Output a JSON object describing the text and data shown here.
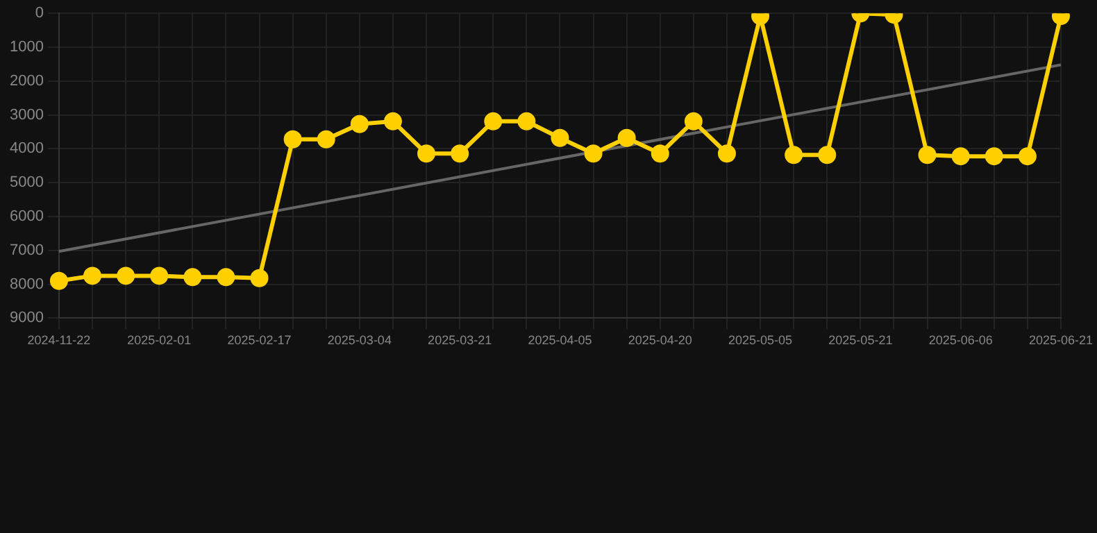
{
  "chart_data": {
    "type": "line",
    "categories": [
      "2024-11-22",
      null,
      null,
      "2025-02-01",
      null,
      null,
      "2025-02-17",
      null,
      null,
      "2025-03-04",
      null,
      null,
      "2025-03-21",
      null,
      null,
      "2025-04-05",
      null,
      null,
      "2025-04-20",
      null,
      null,
      "2025-05-05",
      null,
      null,
      "2025-05-21",
      null,
      null,
      "2025-06-06",
      null,
      null,
      "2025-06-21"
    ],
    "series": [
      {
        "color": "#ffd000",
        "marker": "circle",
        "values": [
          7900,
          7750,
          7750,
          7750,
          7790,
          7790,
          7820,
          3720,
          3720,
          3270,
          3190,
          4140,
          4140,
          3190,
          3190,
          3680,
          4140,
          3680,
          4140,
          3190,
          4140,
          80,
          4180,
          4180,
          0,
          40,
          4180,
          4220,
          4220,
          4220,
          80
        ]
      },
      {
        "color": "#666666",
        "marker": "none",
        "values": [
          7030,
          null,
          null,
          null,
          null,
          null,
          null,
          null,
          null,
          null,
          null,
          null,
          null,
          null,
          null,
          null,
          null,
          null,
          null,
          null,
          null,
          null,
          null,
          null,
          null,
          null,
          null,
          null,
          null,
          null,
          1520
        ]
      }
    ],
    "ylim": [
      9000,
      0
    ],
    "yticks": [
      0,
      1000,
      2000,
      3000,
      4000,
      5000,
      6000,
      7000,
      8000,
      9000
    ],
    "grid": true,
    "legend": false
  }
}
